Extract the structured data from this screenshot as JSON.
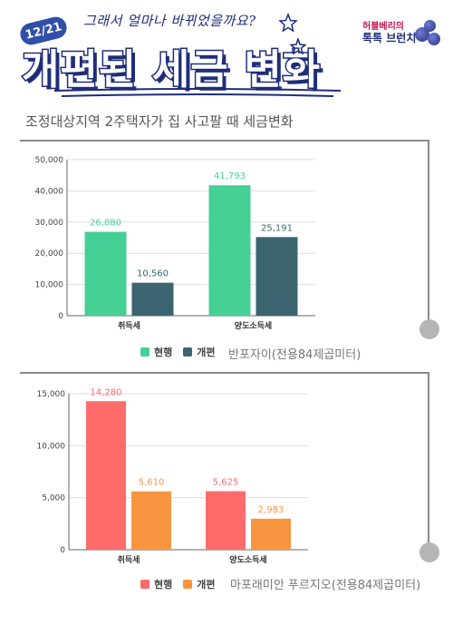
{
  "header": {
    "date_badge": "12/21",
    "subtitle": "그래서 얼마나 바뀌었을까요?",
    "title": "개편된 세금 변화",
    "brand_line1": "허블베리의",
    "brand_line2": "톡톡 브런치"
  },
  "section_title": "조정대상지역 2주택자가 집 사고팔 때 세금변화",
  "colors": {
    "current_1": "#45d095",
    "revised_1": "#3a6470",
    "current_2": "#ff6b6b",
    "revised_2": "#f7953f"
  },
  "chart_data": [
    {
      "type": "bar",
      "categories": [
        "취득세",
        "양도소득세"
      ],
      "series": [
        {
          "name": "현행",
          "values": [
            26880,
            41793
          ]
        },
        {
          "name": "개편",
          "values": [
            10560,
            25191
          ]
        }
      ],
      "value_labels": [
        [
          "26,880",
          "41,793"
        ],
        [
          "10,560",
          "25,191"
        ]
      ],
      "yticks": [
        "0",
        "10,000",
        "20,000",
        "30,000",
        "40,000",
        "50,000"
      ],
      "ylim": [
        0,
        50000
      ],
      "grid": true,
      "legend": "bottom"
    },
    {
      "type": "bar",
      "categories": [
        "취득세",
        "양도소득세"
      ],
      "series": [
        {
          "name": "현행",
          "values": [
            14280,
            5625
          ]
        },
        {
          "name": "개편",
          "values": [
            5610,
            2983
          ]
        }
      ],
      "value_labels": [
        [
          "14,280",
          "5,625"
        ],
        [
          "5,610",
          "2,983"
        ]
      ],
      "yticks": [
        "0",
        "5,000",
        "10,000",
        "15,000"
      ],
      "ylim": [
        0,
        15000
      ],
      "grid": true,
      "legend": "bottom"
    }
  ],
  "captions": [
    "반포자이(전용84제곱미터)",
    "마포래미안 푸르지오(전용84제곱미터)"
  ]
}
